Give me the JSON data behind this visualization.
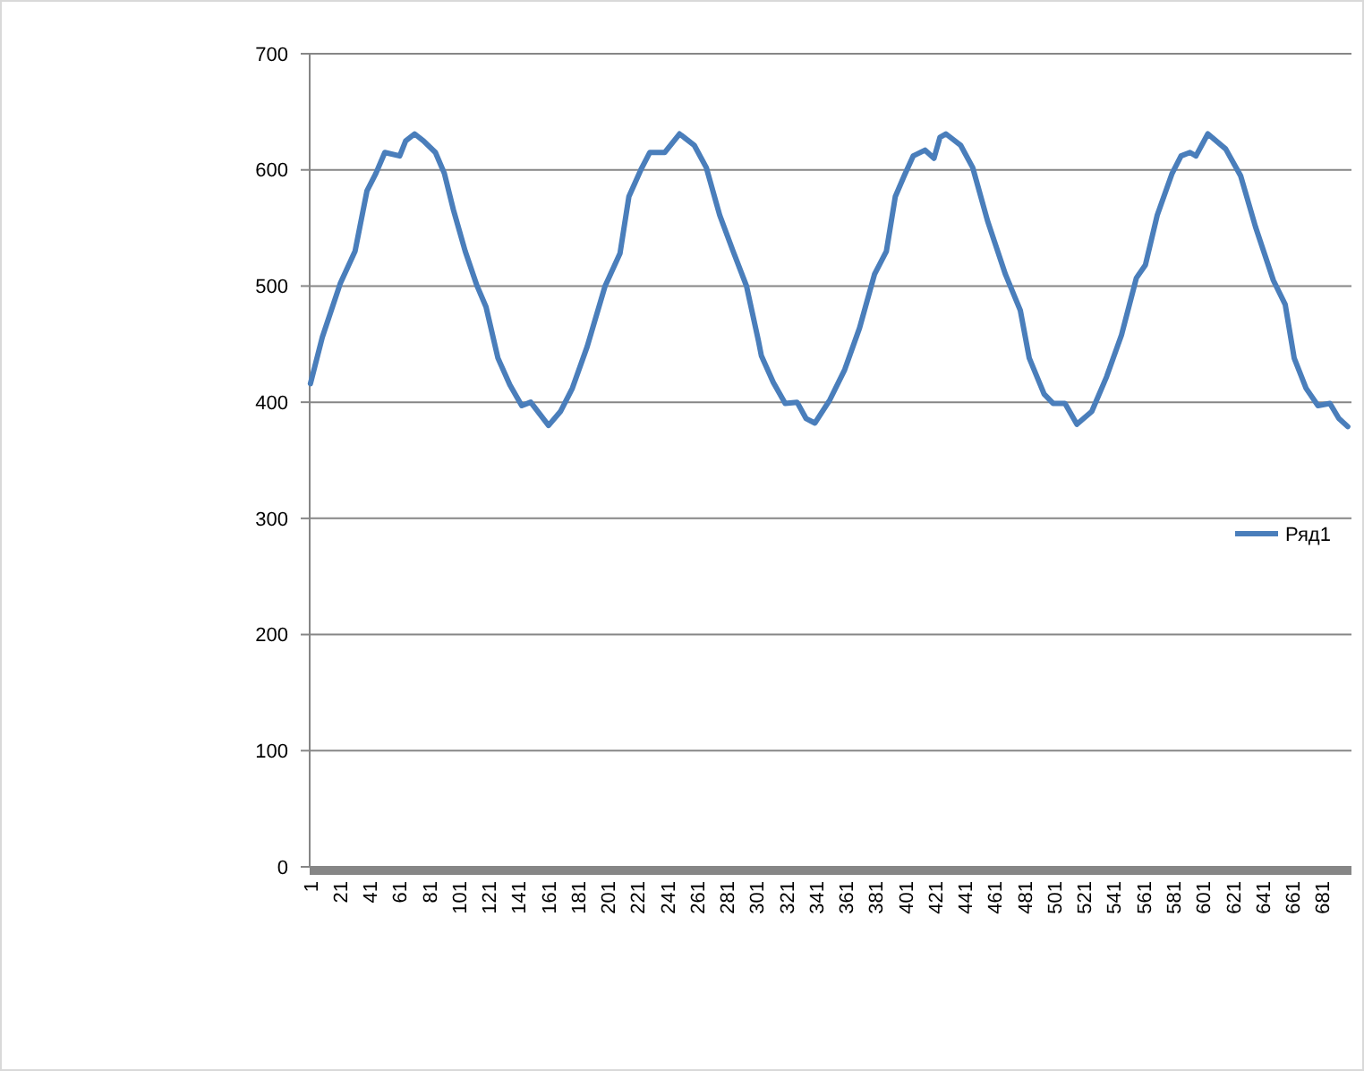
{
  "chart_data": {
    "type": "line",
    "xlim": [
      0.5,
      700.5
    ],
    "ylim": [
      0,
      700
    ],
    "yticks": [
      0,
      100,
      200,
      300,
      400,
      500,
      600,
      700
    ],
    "xticks": [
      1,
      21,
      41,
      61,
      81,
      101,
      121,
      141,
      161,
      181,
      201,
      221,
      241,
      261,
      281,
      301,
      321,
      341,
      361,
      381,
      401,
      421,
      441,
      461,
      481,
      501,
      521,
      541,
      561,
      581,
      601,
      621,
      641,
      661,
      681
    ],
    "grid": "y",
    "legend": "right",
    "marker": "none",
    "line_style": "solid",
    "series": [
      {
        "name": "Ряд1",
        "color": "#4a7ebb",
        "x": [
          1,
          9,
          21,
          31,
          39,
          45,
          51,
          61,
          65,
          71,
          77,
          85,
          91,
          97,
          105,
          113,
          119,
          127,
          135,
          143,
          149,
          161,
          169,
          177,
          187,
          199,
          209,
          215,
          223,
          229,
          239,
          249,
          259,
          267,
          276,
          285,
          294,
          302,
          304,
          312,
          320,
          328,
          334,
          340,
          350,
          360,
          370,
          380,
          388,
          394,
          400,
          406,
          414,
          420,
          424,
          428,
          438,
          446,
          456,
          468,
          478,
          484,
          494,
          500,
          508,
          516,
          526,
          536,
          546,
          556,
          562,
          570,
          580,
          586,
          592,
          596,
          604,
          616,
          626,
          636,
          648,
          656,
          662,
          670,
          678,
          686,
          692,
          698
        ],
        "values": [
          416,
          456,
          502,
          530,
          582,
          597,
          615,
          612,
          625,
          631,
          625,
          615,
          597,
          566,
          530,
          500,
          482,
          438,
          415,
          397,
          400,
          380,
          392,
          412,
          448,
          500,
          528,
          577,
          600,
          615,
          615,
          631,
          621,
          602,
          561,
          530,
          500,
          453,
          440,
          417,
          399,
          400,
          386,
          382,
          402,
          428,
          464,
          510,
          530,
          577,
          595,
          612,
          617,
          610,
          628,
          631,
          621,
          602,
          556,
          510,
          479,
          438,
          407,
          399,
          399,
          381,
          392,
          422,
          458,
          507,
          518,
          561,
          597,
          612,
          615,
          612,
          631,
          618,
          595,
          551,
          505,
          484,
          438,
          412,
          397,
          399,
          386,
          379
        ]
      }
    ]
  }
}
